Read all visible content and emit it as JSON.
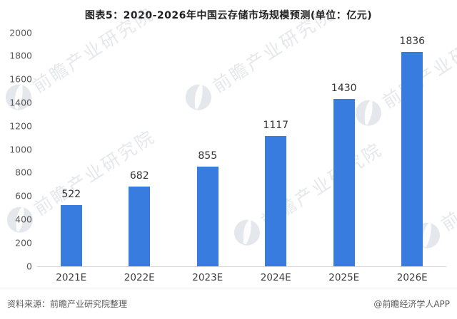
{
  "title": "图表5：2020-2026年中国云存储市场规模预测(单位：亿元)",
  "chart_data": {
    "type": "bar",
    "categories": [
      "2021E",
      "2022E",
      "2023E",
      "2024E",
      "2025E",
      "2026E"
    ],
    "values": [
      522,
      682,
      855,
      1117,
      1430,
      1836
    ],
    "title": "图表5：2020-2026年中国云存储市场规模预测(单位：亿元)",
    "xlabel": "",
    "ylabel": "",
    "ylim": [
      0,
      2000
    ],
    "yticks": [
      0,
      200,
      400,
      600,
      800,
      1000,
      1200,
      1400,
      1600,
      1800,
      2000
    ],
    "grid": false,
    "legend": null,
    "bar_color": "#377CDE",
    "value_labels_shown": true
  },
  "watermark": {
    "text": "前瞻产业研究院",
    "icon": "globe-icon"
  },
  "footer": {
    "source": "资料来源：前瞻产业研究院整理",
    "credit": "@前瞻经济学人APP"
  },
  "colors": {
    "bar": "#377CDE",
    "axis_line": "#d6d6d6",
    "tick_text": "#595959",
    "category_text": "#404040",
    "value_text": "#333333",
    "title_text": "#212121",
    "footer_text": "#595959",
    "watermark": "#9aa6b5",
    "background": "#ffffff"
  }
}
